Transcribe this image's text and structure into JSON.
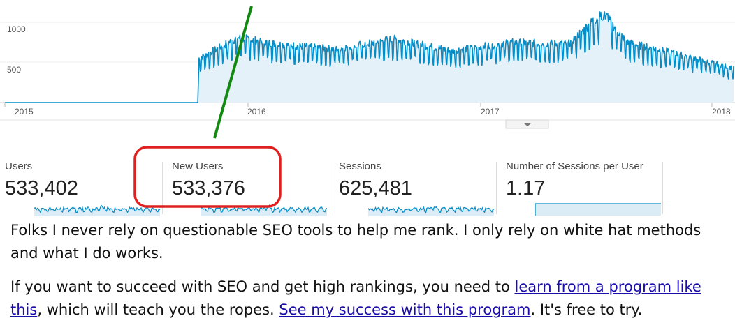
{
  "chart_data": {
    "type": "area",
    "x_ticks": [
      "2015",
      "2016",
      "2017",
      "2018"
    ],
    "y_ticks": [
      500,
      1000
    ],
    "ylim": [
      0,
      1200
    ],
    "start_date": "2015-01-01",
    "end_date": "2018-02-15",
    "approx_series": [
      {
        "date": "2015-01-01",
        "value": 0
      },
      {
        "date": "2015-10-30",
        "value": 0
      },
      {
        "date": "2015-11-01",
        "value": 530
      },
      {
        "date": "2015-12-01",
        "value": 650
      },
      {
        "date": "2016-01-01",
        "value": 780
      },
      {
        "date": "2016-03-01",
        "value": 700
      },
      {
        "date": "2016-06-01",
        "value": 640
      },
      {
        "date": "2016-09-01",
        "value": 760
      },
      {
        "date": "2016-12-01",
        "value": 620
      },
      {
        "date": "2017-03-01",
        "value": 720
      },
      {
        "date": "2017-06-01",
        "value": 700
      },
      {
        "date": "2017-07-25",
        "value": 1080
      },
      {
        "date": "2017-09-01",
        "value": 720
      },
      {
        "date": "2017-12-01",
        "value": 560
      },
      {
        "date": "2018-02-15",
        "value": 410
      }
    ],
    "line_color": "#058dc7",
    "fill_color": "#e5f1f8",
    "grid": true,
    "legend": "none"
  },
  "metrics": [
    {
      "label": "Users",
      "value": "533,402",
      "spark": "full"
    },
    {
      "label": "New Users",
      "value": "533,376",
      "spark": "full"
    },
    {
      "label": "Sessions",
      "value": "625,481",
      "spark": "full"
    },
    {
      "label": "Number of Sessions per User",
      "value": "1.17",
      "spark": "flat"
    }
  ],
  "colors": {
    "accent": "#058dc7",
    "highlight": "#e0201f",
    "annotation": "#128a12"
  },
  "caption": {
    "p1": "Folks I never rely on questionable SEO tools to help me rank. I only rely on white hat methods and what I do works.",
    "p2_a": "If you want to succeed with SEO and get high rankings, you need to ",
    "link1": "learn from a program like this",
    "p2_b": ", which will teach you the ropes. ",
    "link2": "See my success with this program",
    "p2_c": ". It's free to try."
  },
  "icons": {
    "collapse": "chevron-down-icon"
  }
}
